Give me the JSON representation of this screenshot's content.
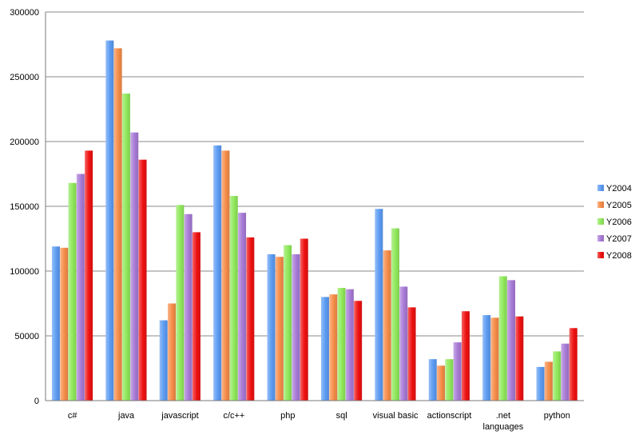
{
  "chart_data": {
    "type": "bar",
    "title": "",
    "xlabel": "",
    "ylabel": "",
    "categories": [
      "c#",
      "java",
      "javascript",
      "c/c++",
      "php",
      "sql",
      "visual basic",
      "actionscript",
      ".net languages",
      "python"
    ],
    "ylim": [
      0,
      300000
    ],
    "yticks": [
      0,
      50000,
      100000,
      150000,
      200000,
      250000,
      300000
    ],
    "ytick_labels": [
      "0",
      "50000",
      "100000",
      "150000",
      "200000",
      "250000",
      "300000"
    ],
    "grid": true,
    "legend_position": "right",
    "series": [
      {
        "name": "Y2004",
        "color": "#5b9bf2",
        "values": [
          119000,
          278000,
          62000,
          197000,
          113000,
          80000,
          148000,
          32000,
          66000,
          26000
        ]
      },
      {
        "name": "Y2005",
        "color": "#f58c48",
        "values": [
          118000,
          272000,
          75000,
          193000,
          111000,
          82000,
          116000,
          27000,
          64000,
          30000
        ]
      },
      {
        "name": "Y2006",
        "color": "#8fe85a",
        "values": [
          168000,
          237000,
          151000,
          158000,
          120000,
          87000,
          133000,
          32000,
          96000,
          38000
        ]
      },
      {
        "name": "Y2007",
        "color": "#a77ad6",
        "values": [
          175000,
          207000,
          144000,
          145000,
          113000,
          86000,
          88000,
          45000,
          93000,
          44000
        ]
      },
      {
        "name": "Y2008",
        "color": "#ee1111",
        "values": [
          193000,
          186000,
          130000,
          126000,
          125000,
          77000,
          72000,
          69000,
          65000,
          56000
        ]
      }
    ]
  }
}
